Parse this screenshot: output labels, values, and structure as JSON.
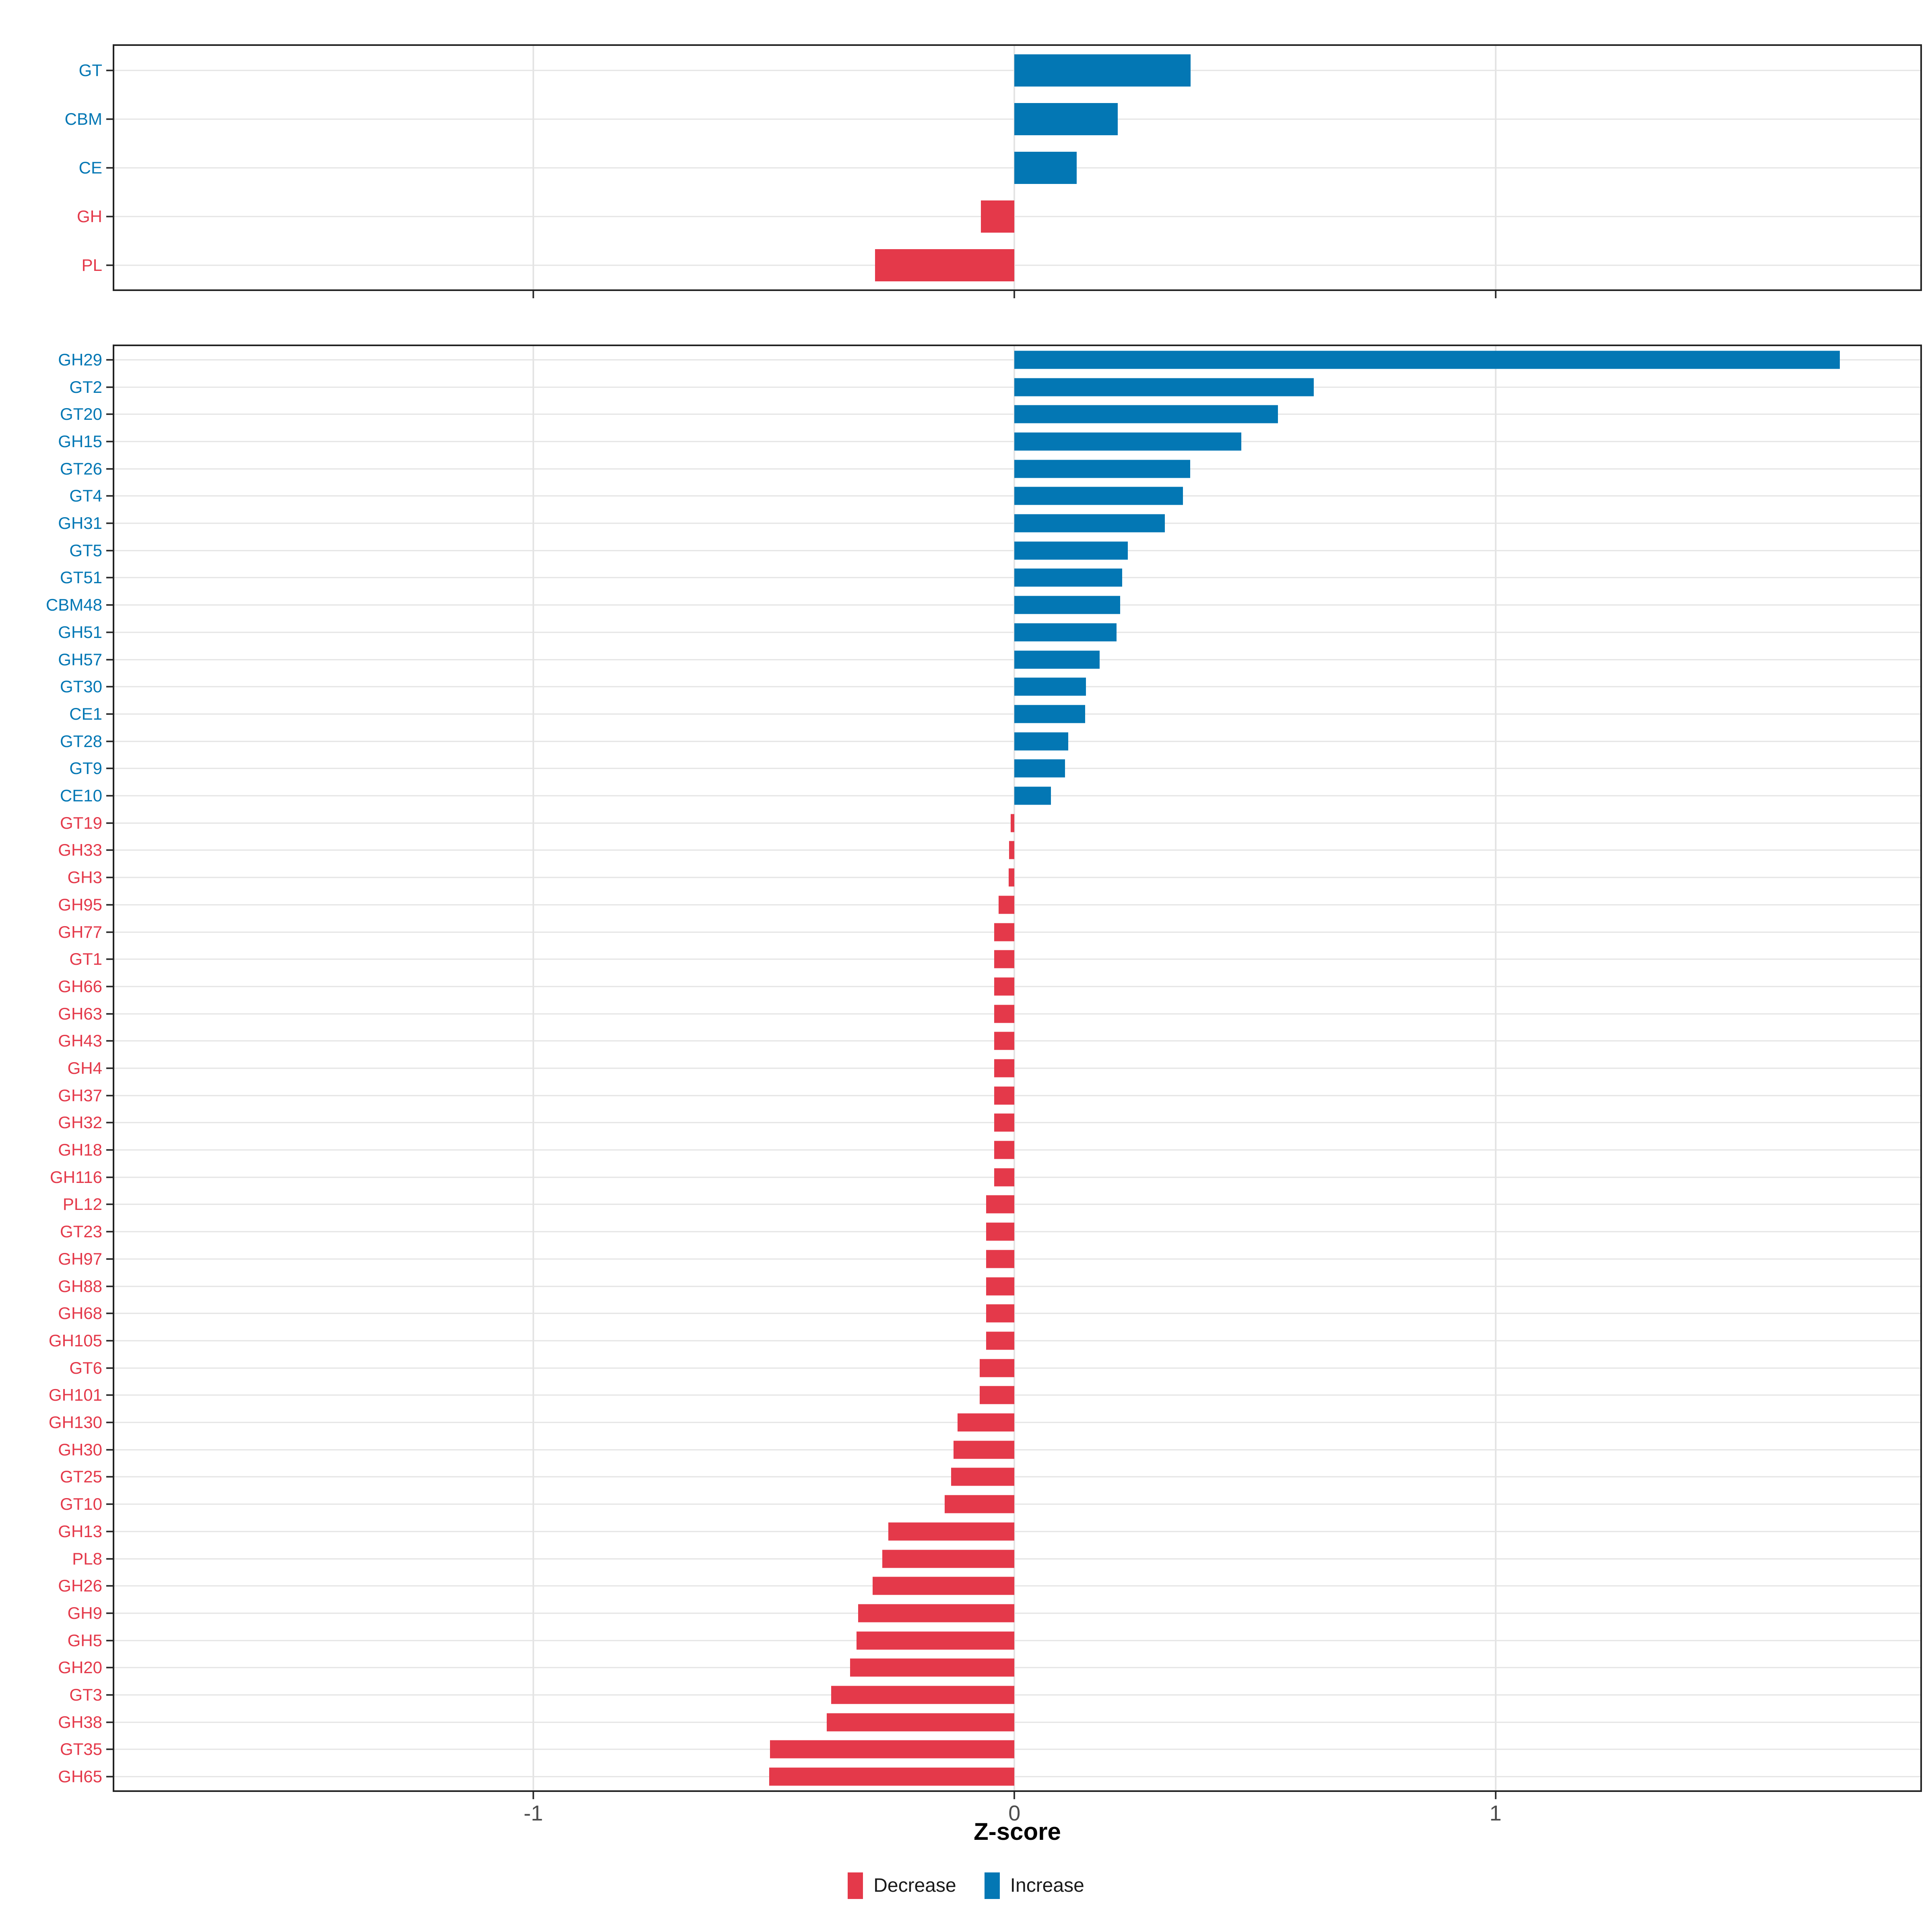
{
  "figure": {
    "background": "#ffffff"
  },
  "colors": {
    "increase": "#0377B4",
    "decrease": "#E4394A",
    "grid": "#E4E4E4",
    "panel_border": "#222222",
    "tick": "#333333",
    "axis_text": "#4D4D4D",
    "axis_title": "#000000",
    "legend_text": "#1A1A1A"
  },
  "axis": {
    "title": "Z-score",
    "ticks": [
      -1,
      0,
      1
    ],
    "tick_labels": [
      "-1",
      "0",
      "1"
    ],
    "xlim": [
      -1.871,
      1.883
    ],
    "grid": "major-only"
  },
  "legend": {
    "items": [
      {
        "label": "Decrease",
        "color_key": "decrease"
      },
      {
        "label": "Increase",
        "color_key": "increase"
      }
    ]
  },
  "chart_data": [
    {
      "type": "bar",
      "orientation": "horizontal",
      "panel": "top",
      "title": "",
      "xlabel": "Z-score",
      "ylabel": "",
      "xlim": [
        -1.871,
        1.883
      ],
      "categories": [
        "GT",
        "CBM",
        "CE",
        "GH",
        "PL"
      ],
      "values": [
        0.366,
        0.215,
        0.129,
        -0.07,
        -0.29
      ]
    },
    {
      "type": "bar",
      "orientation": "horizontal",
      "panel": "bottom",
      "title": "",
      "xlabel": "Z-score",
      "ylabel": "",
      "xlim": [
        -1.871,
        1.883
      ],
      "categories": [
        "GH29",
        "GT2",
        "GT20",
        "GH15",
        "GT26",
        "GT4",
        "GH31",
        "GT5",
        "GT51",
        "CBM48",
        "GH51",
        "GH57",
        "GT30",
        "CE1",
        "GT28",
        "GT9",
        "CE10",
        "GT19",
        "GH33",
        "GH3",
        "GH95",
        "GH77",
        "GT1",
        "GH66",
        "GH63",
        "GH43",
        "GH4",
        "GH37",
        "GH32",
        "GH18",
        "GH116",
        "PL12",
        "GT23",
        "GH97",
        "GH88",
        "GH68",
        "GH105",
        "GT6",
        "GH101",
        "GH130",
        "GH30",
        "GT25",
        "GT10",
        "GH13",
        "PL8",
        "GH26",
        "GH9",
        "GH5",
        "GH20",
        "GT3",
        "GH38",
        "GT35",
        "GH65"
      ],
      "values": [
        1.716,
        0.622,
        0.548,
        0.472,
        0.365,
        0.35,
        0.313,
        0.236,
        0.224,
        0.22,
        0.212,
        0.177,
        0.149,
        0.147,
        0.112,
        0.105,
        0.076,
        -0.008,
        -0.011,
        -0.012,
        -0.033,
        -0.042,
        -0.042,
        -0.042,
        -0.042,
        -0.042,
        -0.042,
        -0.042,
        -0.042,
        -0.042,
        -0.042,
        -0.059,
        -0.059,
        -0.059,
        -0.059,
        -0.059,
        -0.059,
        -0.072,
        -0.072,
        -0.118,
        -0.127,
        -0.132,
        -0.145,
        -0.262,
        -0.275,
        -0.295,
        -0.325,
        -0.328,
        -0.342,
        -0.381,
        -0.39,
        -0.508,
        -0.51
      ]
    }
  ]
}
